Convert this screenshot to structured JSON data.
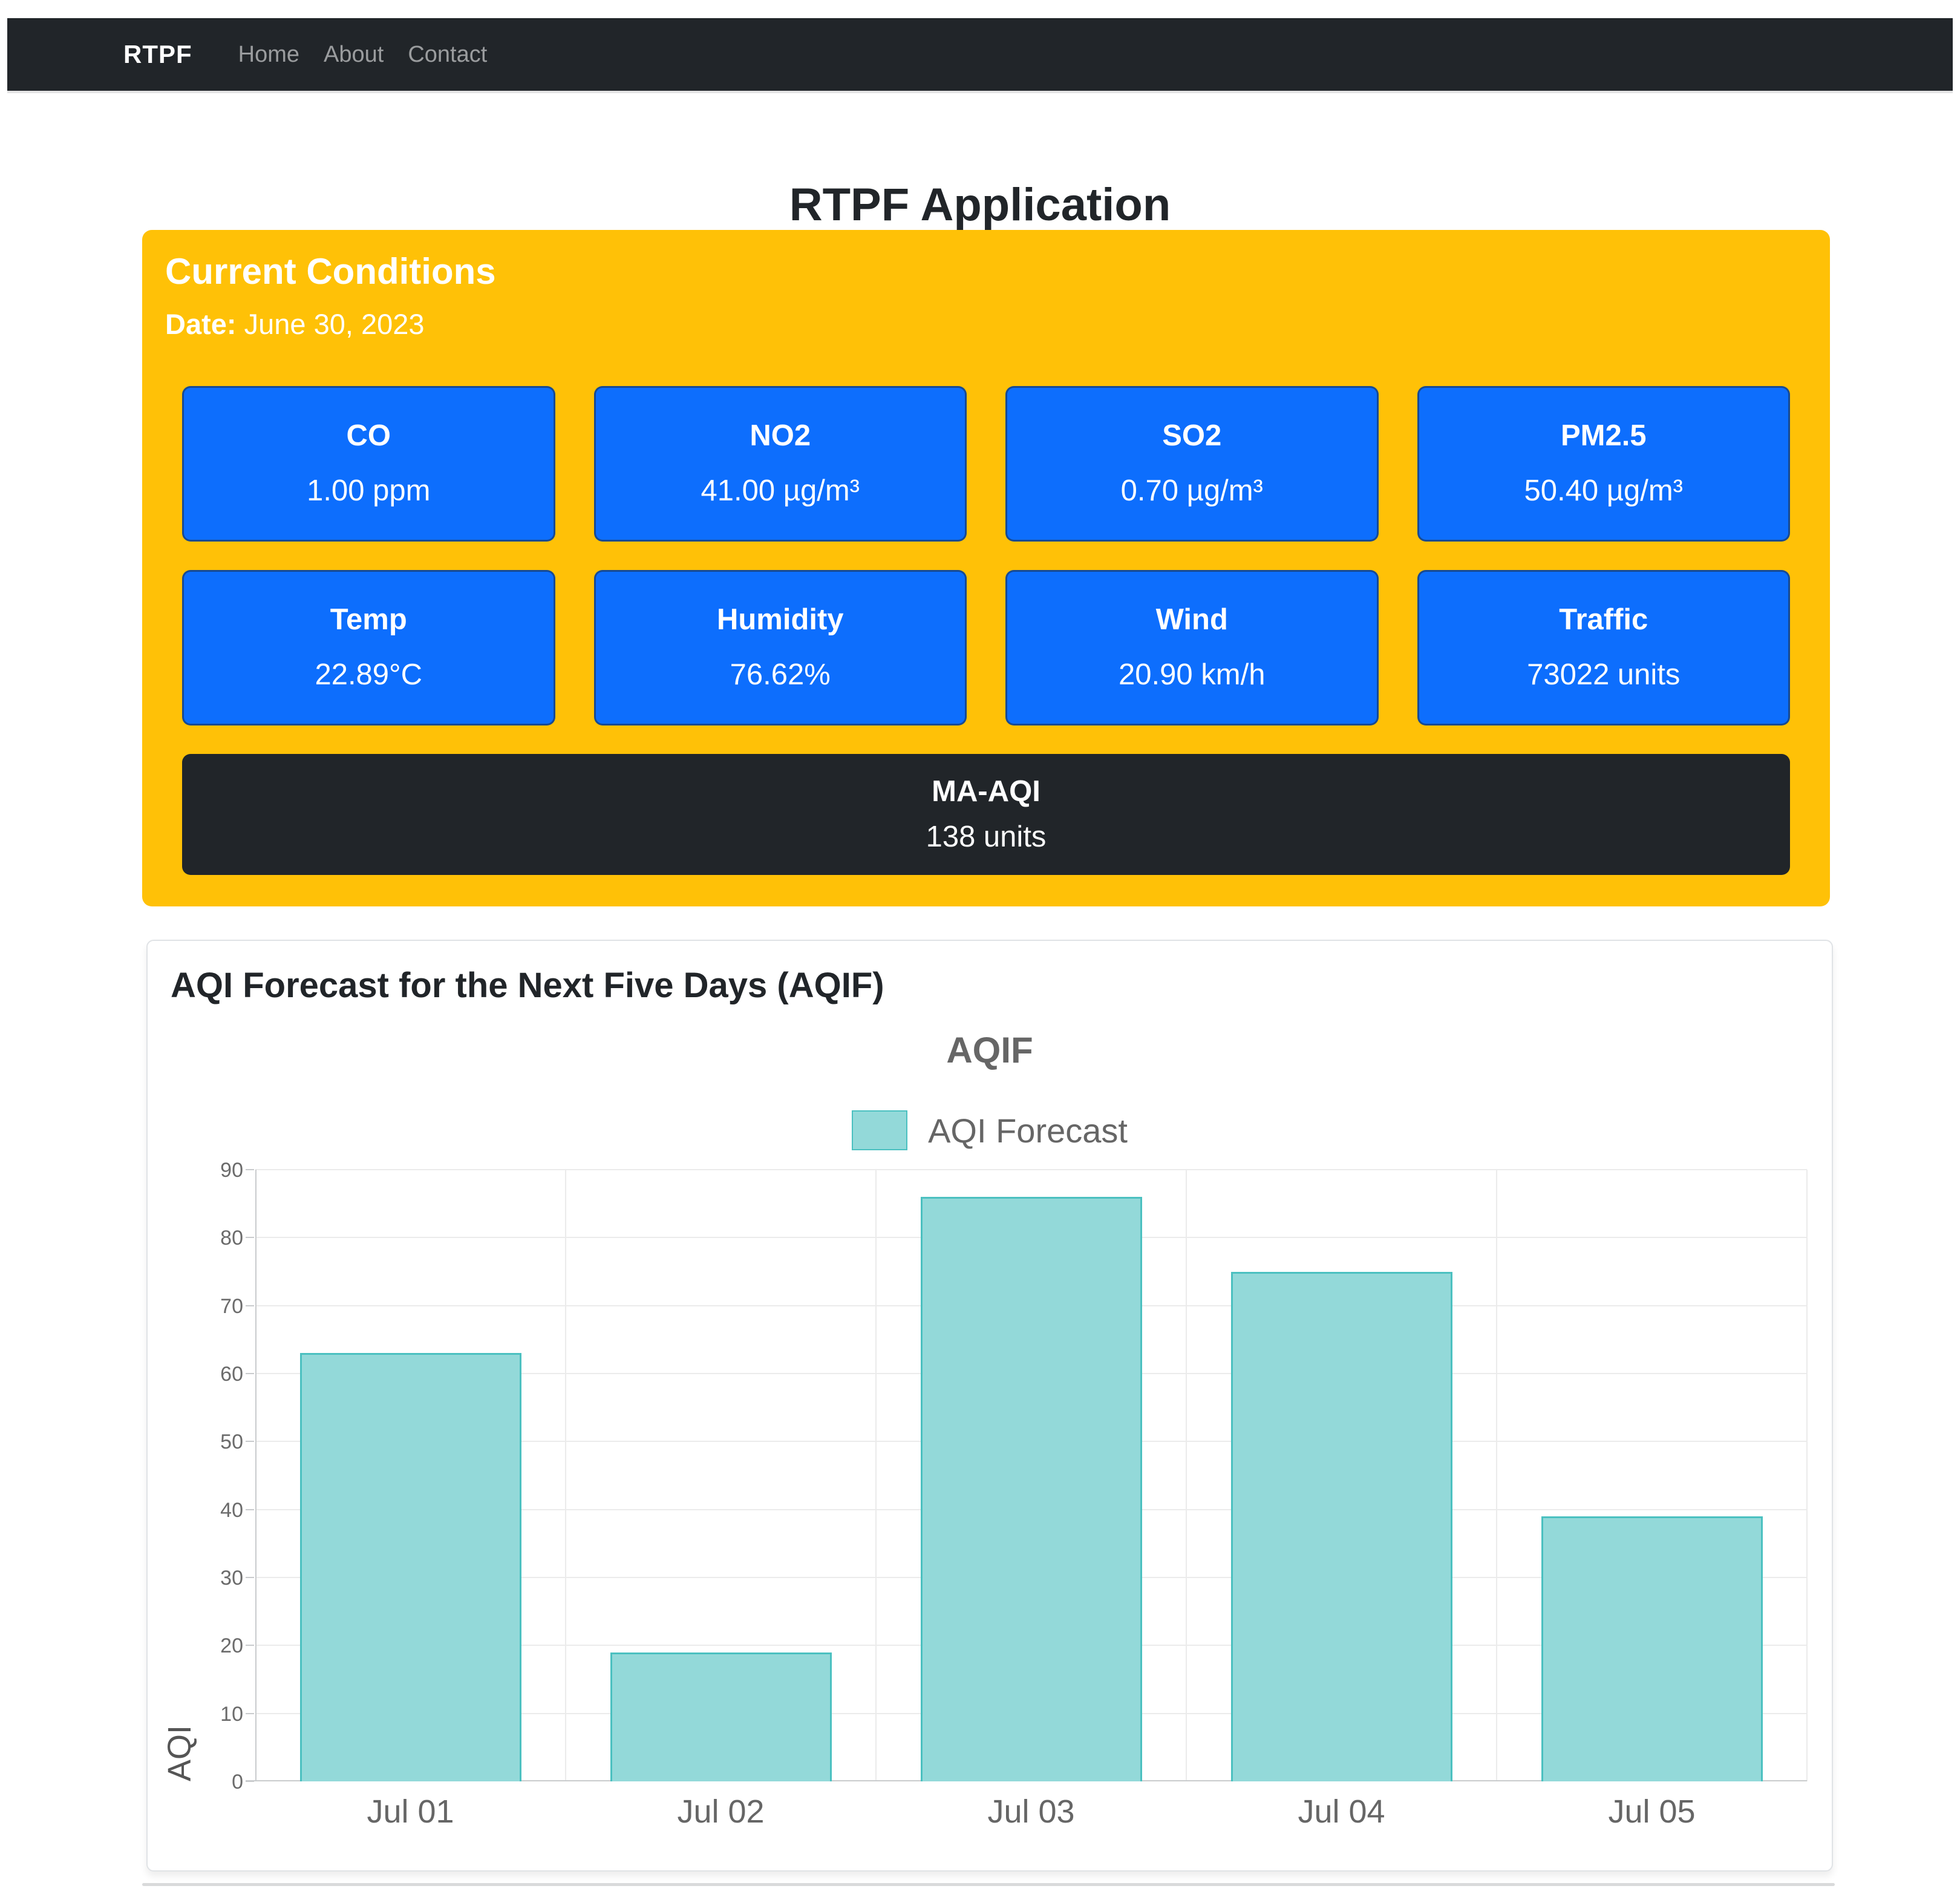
{
  "navbar": {
    "brand": "RTPF",
    "links": [
      {
        "label": "Home"
      },
      {
        "label": "About"
      },
      {
        "label": "Contact"
      }
    ]
  },
  "page_title": "RTPF Application",
  "current_conditions": {
    "title": "Current Conditions",
    "date_label": "Date:",
    "date_value": "June 30, 2023",
    "metrics": [
      {
        "label": "CO",
        "value": "1.00 ppm"
      },
      {
        "label": "NO2",
        "value": "41.00 µg/m³"
      },
      {
        "label": "SO2",
        "value": "0.70 µg/m³"
      },
      {
        "label": "PM2.5",
        "value": "50.40 µg/m³"
      },
      {
        "label": "Temp",
        "value": "22.89°C"
      },
      {
        "label": "Humidity",
        "value": "76.62%"
      },
      {
        "label": "Wind",
        "value": "20.90 km/h"
      },
      {
        "label": "Traffic",
        "value": "73022 units"
      }
    ],
    "aqi_metric": {
      "label": "MA-AQI",
      "value": "138 units"
    },
    "colors": {
      "panel_bg": "#ffc107",
      "metric_bg": "#0d6efd",
      "aqi_bg": "#212529"
    }
  },
  "forecast_section": {
    "heading": "AQI Forecast for the Next Five Days (AQIF)",
    "chart_data": {
      "type": "bar",
      "title": "AQIF",
      "legend": [
        {
          "label": "AQI Forecast",
          "fill": "#93d9d9",
          "border": "#4bc0c0"
        }
      ],
      "categories": [
        "Jul 01",
        "Jul 02",
        "Jul 03",
        "Jul 04",
        "Jul 05"
      ],
      "values": [
        63,
        19,
        86,
        75,
        39
      ],
      "xlabel": "",
      "ylabel": "AQI",
      "ylim": [
        0,
        90
      ],
      "ytick_step": 10,
      "grid": true,
      "legend_position": "top"
    }
  }
}
